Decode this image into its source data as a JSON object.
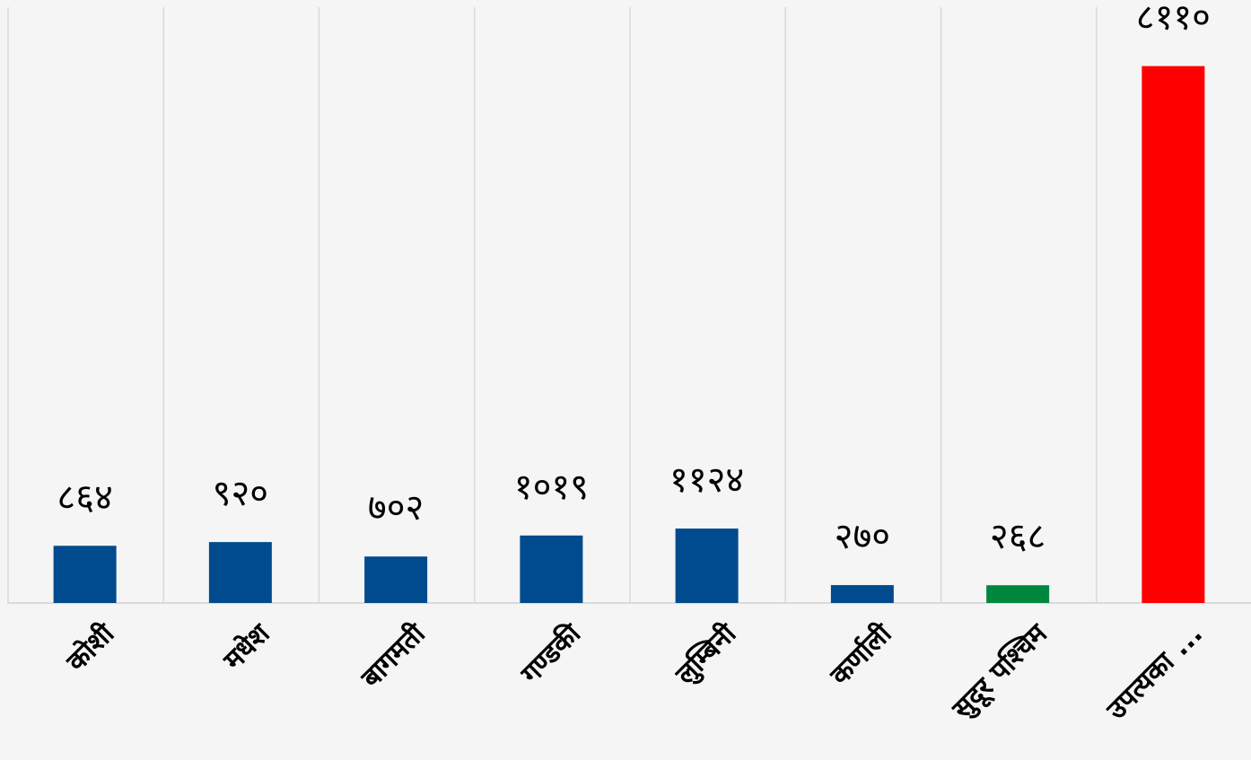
{
  "chart_data": {
    "type": "bar",
    "categories": [
      "कोशी",
      "मधेश",
      "बागमती",
      "गण्डकी",
      "लुम्बिनी",
      "कर्णाली",
      "सुदूर पश्चिम",
      "उपत्यका ..."
    ],
    "values": [
      864,
      920,
      702,
      1019,
      1124,
      270,
      268,
      8110
    ],
    "value_labels": [
      "८६४",
      "९२०",
      "७०२",
      "१०१९",
      "११२४",
      "२७०",
      "२६८",
      "८११०"
    ],
    "colors": [
      "#004b8d",
      "#004b8d",
      "#004b8d",
      "#004b8d",
      "#004b8d",
      "#004b8d",
      "#00873e",
      "#ff0000"
    ],
    "ylim": [
      0,
      9000
    ]
  }
}
